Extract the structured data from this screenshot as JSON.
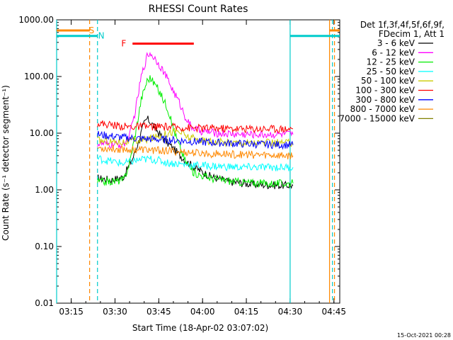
{
  "chart_data": {
    "type": "line",
    "title": "RHESSI Count Rates",
    "xlabel": "Start Time (18-Apr-02 03:07:02)",
    "ylabel": "Count Rate (s⁻¹ detector segment⁻¹)",
    "yscale": "log",
    "ylim": [
      0.01,
      1000
    ],
    "xlim_minutes": [
      3.0,
      100.0
    ],
    "x_ticks": [
      {
        "label": "03:15",
        "min": 8
      },
      {
        "label": "03:30",
        "min": 23
      },
      {
        "label": "03:45",
        "min": 38
      },
      {
        "label": "04:00",
        "min": 53
      },
      {
        "label": "04:15",
        "min": 68
      },
      {
        "label": "04:30",
        "min": 83
      },
      {
        "label": "04:45",
        "min": 98
      }
    ],
    "y_ticks": [
      {
        "label": "1000.00",
        "value": 1000
      },
      {
        "label": "100.00",
        "value": 100
      },
      {
        "label": "10.00",
        "value": 10
      },
      {
        "label": "1.00",
        "value": 1
      },
      {
        "label": "0.10",
        "value": 0.1
      },
      {
        "label": "0.01",
        "value": 0.01
      }
    ],
    "legend_header": [
      "Det 1f,3f,4f,5f,6f,9f,",
      "FDecim 1, Att 1"
    ],
    "legend_position": "right",
    "series": [
      {
        "name": "3 - 6 keV",
        "color": "#000000",
        "points": [
          [
            17,
            1.6
          ],
          [
            22,
            1.5
          ],
          [
            26,
            1.7
          ],
          [
            27,
            2.2
          ],
          [
            29,
            3.5
          ],
          [
            31,
            7
          ],
          [
            33,
            15
          ],
          [
            34,
            18
          ],
          [
            36,
            14
          ],
          [
            38,
            10
          ],
          [
            40,
            7.5
          ],
          [
            42,
            6
          ],
          [
            45,
            4.2
          ],
          [
            48,
            3
          ],
          [
            52,
            2.2
          ],
          [
            56,
            1.7
          ],
          [
            62,
            1.4
          ],
          [
            70,
            1.25
          ],
          [
            78,
            1.2
          ],
          [
            84,
            1.2
          ]
        ]
      },
      {
        "name": "6 - 12 keV",
        "color": "#ff00ff",
        "points": [
          [
            17,
            6.5
          ],
          [
            22,
            6.2
          ],
          [
            26,
            6.3
          ],
          [
            28,
            9
          ],
          [
            30,
            25
          ],
          [
            32,
            100
          ],
          [
            34,
            230
          ],
          [
            35,
            260
          ],
          [
            37,
            200
          ],
          [
            39,
            140
          ],
          [
            41,
            90
          ],
          [
            43,
            55
          ],
          [
            45,
            35
          ],
          [
            47,
            20
          ],
          [
            49,
            13
          ],
          [
            52,
            11
          ],
          [
            58,
            10
          ],
          [
            66,
            9.5
          ],
          [
            76,
            9.5
          ],
          [
            84,
            9.5
          ]
        ]
      },
      {
        "name": "12 - 25 keV",
        "color": "#00ee00",
        "points": [
          [
            17,
            1.4
          ],
          [
            22,
            1.4
          ],
          [
            26,
            1.5
          ],
          [
            28,
            3
          ],
          [
            30,
            10
          ],
          [
            32,
            40
          ],
          [
            34,
            85
          ],
          [
            35,
            95
          ],
          [
            37,
            70
          ],
          [
            39,
            45
          ],
          [
            41,
            28
          ],
          [
            43,
            12
          ],
          [
            45,
            6
          ],
          [
            47,
            3.3
          ],
          [
            50,
            2
          ],
          [
            56,
            1.6
          ],
          [
            64,
            1.4
          ],
          [
            74,
            1.3
          ],
          [
            84,
            1.3
          ]
        ]
      },
      {
        "name": "25 - 50 keV",
        "color": "#00ffff",
        "points": [
          [
            17,
            3.6
          ],
          [
            20,
            3.3
          ],
          [
            23,
            3.1
          ],
          [
            26,
            2.9
          ],
          [
            29,
            3.2
          ],
          [
            32,
            3.4
          ],
          [
            35,
            3.5
          ],
          [
            38,
            3.3
          ],
          [
            41,
            3.0
          ],
          [
            44,
            2.9
          ],
          [
            47,
            2.8
          ],
          [
            52,
            2.7
          ],
          [
            58,
            2.6
          ],
          [
            66,
            2.5
          ],
          [
            76,
            2.5
          ],
          [
            84,
            2.5
          ]
        ]
      },
      {
        "name": "50 - 100 keV",
        "color": "#cccc00",
        "points": [
          [
            17,
            7.5
          ],
          [
            20,
            7.2
          ],
          [
            25,
            7.0
          ],
          [
            29,
            7.2
          ],
          [
            33,
            7.6
          ],
          [
            37,
            8.5
          ],
          [
            41,
            10
          ],
          [
            44,
            11
          ],
          [
            46,
            10
          ],
          [
            48,
            8.5
          ],
          [
            52,
            7.5
          ],
          [
            58,
            7
          ],
          [
            66,
            6.8
          ],
          [
            76,
            6.7
          ],
          [
            84,
            6.7
          ]
        ]
      },
      {
        "name": "100 - 300 keV",
        "color": "#ff0000",
        "points": [
          [
            17,
            15
          ],
          [
            22,
            14
          ],
          [
            27,
            13
          ],
          [
            32,
            13
          ],
          [
            37,
            13
          ],
          [
            42,
            12.8
          ],
          [
            47,
            12.5
          ],
          [
            52,
            12.3
          ],
          [
            58,
            12.2
          ],
          [
            66,
            12
          ],
          [
            76,
            12
          ],
          [
            84,
            12
          ]
        ]
      },
      {
        "name": "300 - 800 keV",
        "color": "#0000ff",
        "points": [
          [
            17,
            9.5
          ],
          [
            22,
            8.8
          ],
          [
            27,
            8.3
          ],
          [
            32,
            8.0
          ],
          [
            37,
            7.8
          ],
          [
            42,
            7.6
          ],
          [
            47,
            7.3
          ],
          [
            52,
            7.0
          ],
          [
            58,
            6.8
          ],
          [
            66,
            6.5
          ],
          [
            76,
            6.3
          ],
          [
            84,
            6.2
          ]
        ]
      },
      {
        "name": "800 - 7000 keV",
        "color": "#ff8800",
        "points": [
          [
            17,
            5.5
          ],
          [
            22,
            5.3
          ],
          [
            27,
            5.2
          ],
          [
            32,
            5.1
          ],
          [
            37,
            5.0
          ],
          [
            42,
            4.8
          ],
          [
            47,
            4.6
          ],
          [
            52,
            4.4
          ],
          [
            58,
            4.3
          ],
          [
            66,
            4.2
          ],
          [
            76,
            4.1
          ],
          [
            84,
            4.0
          ]
        ]
      },
      {
        "name": "7000 - 15000 keV",
        "color": "#808000",
        "points": []
      }
    ],
    "annotations": [
      {
        "text": "S",
        "color": "#ff8800",
        "type": "bar",
        "label_min": 15.0,
        "y_value": 650,
        "from_min": 3.0,
        "to_min": 14.3
      },
      {
        "text": "N",
        "color": "#00cccc",
        "type": "bar",
        "label_min": 18.3,
        "y_value": 520,
        "from_min": 3.0,
        "to_min": 17.0
      },
      {
        "text": "F",
        "color": "#ff0000",
        "type": "bar",
        "label_min": 26.0,
        "y_value": 380,
        "from_min": 29.0,
        "to_min": 50.0
      }
    ],
    "right_bars": [
      {
        "color": "#00cccc",
        "y_value": 520,
        "from_min": 83.0,
        "to_min": 100.0
      },
      {
        "color": "#ff8800",
        "y_value": 650,
        "from_min": 96.5,
        "to_min": 100.0
      }
    ],
    "vlines": [
      {
        "min": 3.0,
        "color": "#00cccc",
        "style": "solid"
      },
      {
        "min": 14.3,
        "color": "#ff8800",
        "style": "dashed"
      },
      {
        "min": 17.0,
        "color": "#00cccc",
        "style": "dashed"
      },
      {
        "min": 83.0,
        "color": "#00cccc",
        "style": "solid"
      },
      {
        "min": 96.5,
        "color": "#ff8800",
        "style": "solid"
      },
      {
        "min": 97.5,
        "color": "#00cccc",
        "style": "dashed"
      },
      {
        "min": 98.2,
        "color": "#ff8800",
        "style": "dashed"
      }
    ]
  },
  "footer_stamp": "15-Oct-2021 00:28"
}
